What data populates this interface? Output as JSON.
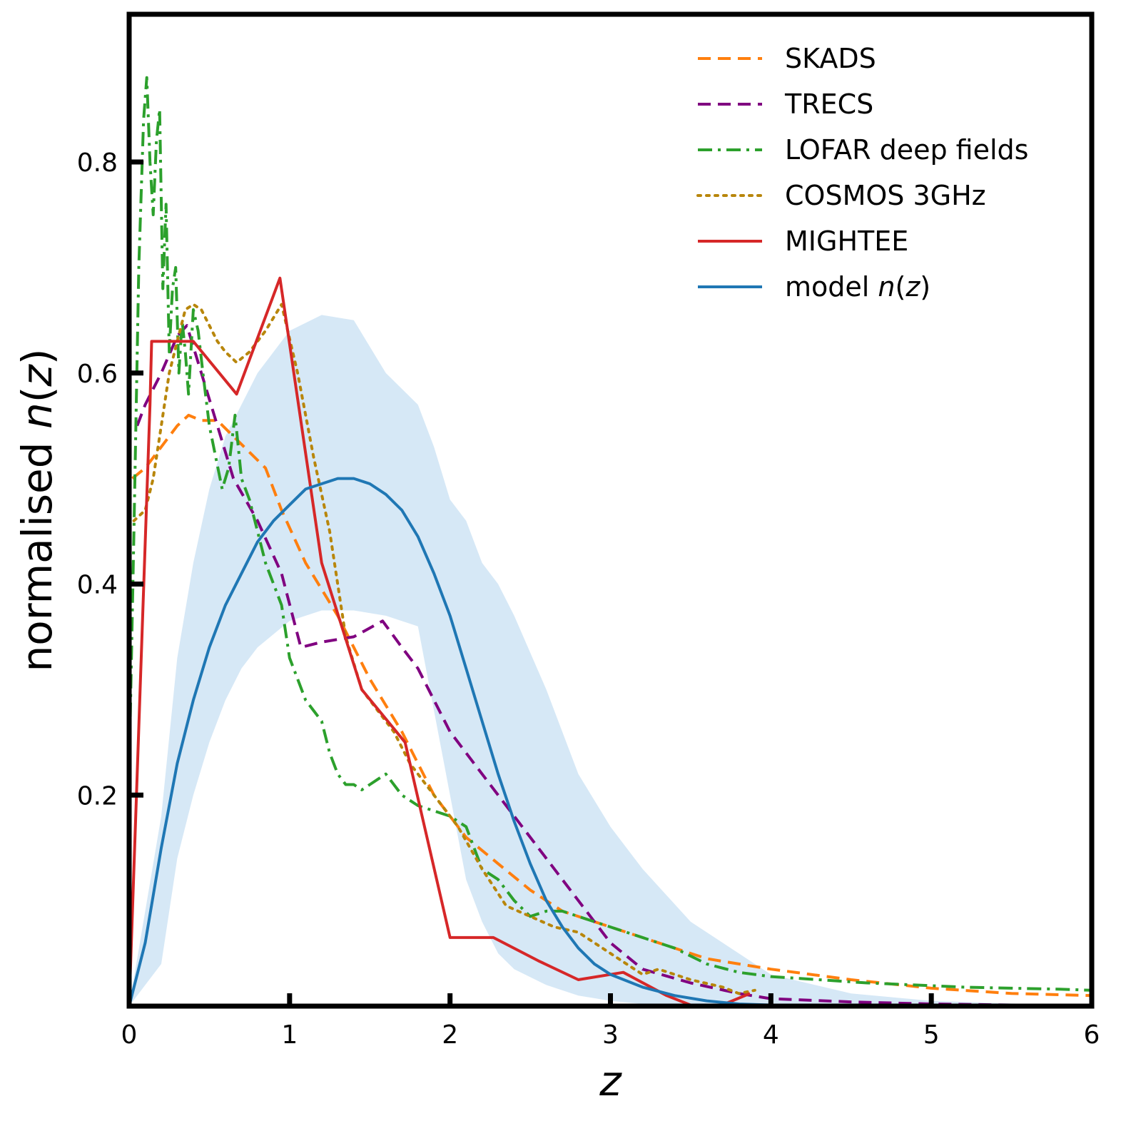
{
  "chart_data": {
    "type": "line",
    "xlabel": "z",
    "ylabel": "normalised n(z)",
    "xlim": [
      0,
      6
    ],
    "ylim": [
      0,
      0.94
    ],
    "xticks": [
      0,
      1,
      2,
      3,
      4,
      5,
      6
    ],
    "xtick_labels": [
      "0",
      "1",
      "2",
      "3",
      "4",
      "5",
      "6"
    ],
    "yticks": [
      0.2,
      0.4,
      0.6,
      0.8
    ],
    "ytick_labels": [
      "0.2",
      "0.4",
      "0.6",
      "0.8"
    ],
    "grid": false,
    "legend_position": "top-right",
    "band": {
      "color": "#d6e8f6",
      "x": [
        0.0,
        0.2,
        0.3,
        0.4,
        0.5,
        0.6,
        0.7,
        0.8,
        1.0,
        1.2,
        1.4,
        1.6,
        1.8,
        1.9,
        2.0,
        2.1,
        2.2,
        2.3,
        2.4,
        2.6,
        2.8,
        3.0,
        3.2,
        3.5,
        4.0,
        4.5,
        5.0,
        6.0
      ],
      "upper": [
        0.0,
        0.18,
        0.33,
        0.42,
        0.49,
        0.54,
        0.57,
        0.6,
        0.64,
        0.655,
        0.65,
        0.6,
        0.57,
        0.53,
        0.48,
        0.46,
        0.42,
        0.4,
        0.37,
        0.3,
        0.22,
        0.17,
        0.13,
        0.08,
        0.03,
        0.012,
        0.005,
        0.0
      ],
      "lower": [
        0.0,
        0.04,
        0.14,
        0.2,
        0.25,
        0.29,
        0.32,
        0.34,
        0.365,
        0.375,
        0.375,
        0.37,
        0.36,
        0.28,
        0.2,
        0.12,
        0.08,
        0.05,
        0.035,
        0.02,
        0.01,
        0.005,
        0.002,
        0.0,
        0.0,
        0.0,
        0.0,
        0.0
      ]
    },
    "series": [
      {
        "name": "SKADS",
        "color": "#ff7f0e",
        "style": "dashed",
        "x": [
          0.02,
          0.1,
          0.2,
          0.3,
          0.37,
          0.45,
          0.55,
          0.65,
          0.75,
          0.85,
          0.95,
          1.1,
          1.3,
          1.5,
          1.7,
          1.9,
          2.1,
          2.3,
          2.5,
          2.7,
          3.0,
          3.3,
          3.6,
          4.0,
          4.5,
          5.0,
          5.5,
          6.0
        ],
        "y": [
          0.5,
          0.51,
          0.53,
          0.55,
          0.56,
          0.555,
          0.555,
          0.54,
          0.525,
          0.51,
          0.47,
          0.42,
          0.37,
          0.31,
          0.26,
          0.2,
          0.16,
          0.135,
          0.11,
          0.09,
          0.075,
          0.06,
          0.045,
          0.035,
          0.025,
          0.017,
          0.012,
          0.01
        ]
      },
      {
        "name": "TRECS",
        "color": "#800080",
        "style": "dashed",
        "x": [
          0.05,
          0.1,
          0.2,
          0.3,
          0.36,
          0.45,
          0.55,
          0.65,
          0.8,
          0.95,
          1.07,
          1.2,
          1.4,
          1.58,
          1.7,
          1.8,
          2.0,
          2.2,
          2.4,
          2.6,
          2.8,
          3.0,
          3.2,
          3.5,
          3.8,
          4.0,
          4.5,
          5.0,
          5.5,
          6.0
        ],
        "y": [
          0.55,
          0.57,
          0.6,
          0.635,
          0.645,
          0.6,
          0.55,
          0.5,
          0.46,
          0.41,
          0.34,
          0.345,
          0.35,
          0.365,
          0.34,
          0.32,
          0.26,
          0.22,
          0.18,
          0.14,
          0.1,
          0.06,
          0.035,
          0.022,
          0.012,
          0.007,
          0.004,
          0.002,
          0.001,
          0.001
        ]
      },
      {
        "name": "LOFAR deep fields",
        "color": "#2ca02c",
        "style": "dashdot",
        "x": [
          0.0,
          0.03,
          0.06,
          0.09,
          0.11,
          0.13,
          0.15,
          0.17,
          0.19,
          0.21,
          0.23,
          0.25,
          0.27,
          0.29,
          0.31,
          0.33,
          0.35,
          0.37,
          0.4,
          0.43,
          0.46,
          0.5,
          0.54,
          0.58,
          0.62,
          0.66,
          0.7,
          0.75,
          0.8,
          0.85,
          0.9,
          0.95,
          1.0,
          1.05,
          1.1,
          1.15,
          1.2,
          1.25,
          1.3,
          1.35,
          1.4,
          1.45,
          1.5,
          1.55,
          1.6,
          1.7,
          1.8,
          1.9,
          2.0,
          2.1,
          2.2,
          2.3,
          2.4,
          2.5,
          2.6,
          2.7,
          2.8,
          2.9,
          3.0,
          3.2,
          3.4,
          3.6,
          3.8,
          4.0,
          4.3,
          4.6,
          4.9,
          5.2,
          5.5,
          5.8,
          6.0
        ],
        "y": [
          0.22,
          0.45,
          0.7,
          0.84,
          0.88,
          0.8,
          0.75,
          0.82,
          0.85,
          0.68,
          0.76,
          0.62,
          0.68,
          0.7,
          0.6,
          0.65,
          0.62,
          0.58,
          0.66,
          0.64,
          0.6,
          0.55,
          0.52,
          0.49,
          0.51,
          0.56,
          0.5,
          0.48,
          0.45,
          0.42,
          0.4,
          0.38,
          0.33,
          0.31,
          0.29,
          0.28,
          0.27,
          0.24,
          0.22,
          0.21,
          0.21,
          0.205,
          0.21,
          0.215,
          0.22,
          0.2,
          0.19,
          0.185,
          0.18,
          0.17,
          0.13,
          0.12,
          0.1,
          0.085,
          0.09,
          0.09,
          0.085,
          0.08,
          0.075,
          0.065,
          0.055,
          0.04,
          0.032,
          0.028,
          0.025,
          0.022,
          0.02,
          0.018,
          0.017,
          0.016,
          0.015
        ]
      },
      {
        "name": "COSMOS 3GHz",
        "color": "#b8860b",
        "style": "dotted",
        "x": [
          0.03,
          0.1,
          0.15,
          0.2,
          0.25,
          0.3,
          0.35,
          0.4,
          0.45,
          0.5,
          0.55,
          0.6,
          0.67,
          0.75,
          0.85,
          0.95,
          1.05,
          1.15,
          1.25,
          1.35,
          1.45,
          1.55,
          1.65,
          1.75,
          1.85,
          1.95,
          2.05,
          2.2,
          2.35,
          2.5,
          2.65,
          2.8,
          2.9,
          3.0,
          3.1,
          3.2,
          3.3,
          3.5,
          3.7,
          3.8,
          3.9
        ],
        "y": [
          0.46,
          0.47,
          0.5,
          0.55,
          0.6,
          0.63,
          0.66,
          0.665,
          0.66,
          0.645,
          0.63,
          0.62,
          0.61,
          0.62,
          0.64,
          0.665,
          0.6,
          0.52,
          0.45,
          0.35,
          0.3,
          0.28,
          0.26,
          0.23,
          0.21,
          0.19,
          0.17,
          0.13,
          0.095,
          0.085,
          0.075,
          0.07,
          0.06,
          0.05,
          0.04,
          0.03,
          0.035,
          0.025,
          0.018,
          0.012,
          0.015
        ]
      },
      {
        "name": "MIGHTEE",
        "color": "#d62728",
        "style": "solid",
        "x": [
          0.0,
          0.13,
          0.14,
          0.4,
          0.67,
          0.94,
          1.2,
          1.45,
          1.72,
          2.0,
          2.27,
          2.55,
          2.8,
          3.08,
          3.35,
          3.6,
          3.87
        ],
        "y": [
          0.0,
          0.57,
          0.63,
          0.63,
          0.58,
          0.69,
          0.42,
          0.3,
          0.25,
          0.065,
          0.065,
          0.043,
          0.025,
          0.032,
          0.01,
          -0.005,
          0.012
        ]
      },
      {
        "name": "model n(z)",
        "color": "#1f77b4",
        "style": "solid",
        "x": [
          0.0,
          0.1,
          0.2,
          0.3,
          0.4,
          0.5,
          0.6,
          0.7,
          0.8,
          0.9,
          1.0,
          1.1,
          1.2,
          1.3,
          1.4,
          1.5,
          1.6,
          1.7,
          1.8,
          1.9,
          2.0,
          2.1,
          2.2,
          2.3,
          2.4,
          2.5,
          2.6,
          2.7,
          2.8,
          2.9,
          3.0,
          3.2,
          3.4,
          3.6,
          3.8,
          4.0,
          4.5,
          5.0,
          6.0
        ],
        "y": [
          0.0,
          0.06,
          0.15,
          0.23,
          0.29,
          0.34,
          0.38,
          0.41,
          0.44,
          0.46,
          0.475,
          0.49,
          0.495,
          0.5,
          0.5,
          0.495,
          0.485,
          0.47,
          0.445,
          0.41,
          0.37,
          0.32,
          0.27,
          0.22,
          0.175,
          0.135,
          0.1,
          0.075,
          0.055,
          0.04,
          0.03,
          0.018,
          0.01,
          0.005,
          0.002,
          0.001,
          0.0,
          0.0,
          0.0
        ]
      }
    ]
  },
  "legend": [
    {
      "label": "SKADS"
    },
    {
      "label": "TRECS"
    },
    {
      "label": "LOFAR deep fields"
    },
    {
      "label": "COSMOS 3GHz"
    },
    {
      "label": "MIGHTEE"
    },
    {
      "label": "model n(z)",
      "label_prefix": "model ",
      "label_var": "n",
      "label_paren_open": "(",
      "label_var2": "z",
      "label_paren_close": ")"
    }
  ]
}
